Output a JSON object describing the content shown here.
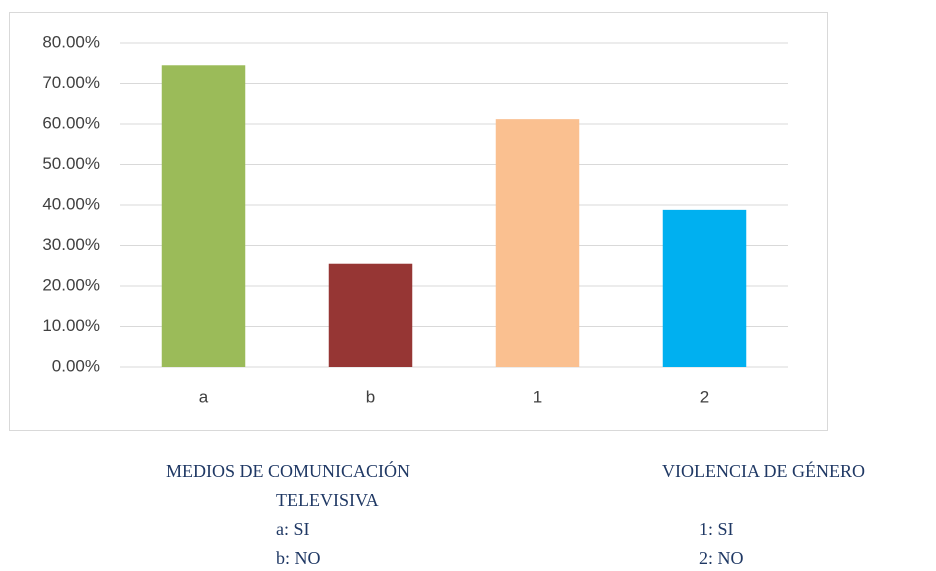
{
  "chart_data": {
    "type": "bar",
    "categories": [
      "a",
      "b",
      "1",
      "2"
    ],
    "values": [
      74.5,
      25.5,
      61.2,
      38.8
    ],
    "colors": [
      "#9bbb59",
      "#963634",
      "#fac090",
      "#00b0f0"
    ],
    "ylim": [
      0,
      80
    ],
    "yticks": [
      {
        "value": 0,
        "label": "0.00%"
      },
      {
        "value": 10,
        "label": "10.00%"
      },
      {
        "value": 20,
        "label": "20.00%"
      },
      {
        "value": 30,
        "label": "30.00%"
      },
      {
        "value": 40,
        "label": "40.00%"
      },
      {
        "value": 50,
        "label": "50.00%"
      },
      {
        "value": 60,
        "label": "60.00%"
      },
      {
        "value": 70,
        "label": "70.00%"
      },
      {
        "value": 80,
        "label": "80.00%"
      }
    ],
    "grid": true,
    "annotations": [
      "MEDIOS DE COMUNICACIÓN",
      "TELEVISIVA",
      "a: SI",
      "b: NO",
      "VIOLENCIA DE GÉNERO",
      "1: SI",
      "2: NO"
    ]
  }
}
